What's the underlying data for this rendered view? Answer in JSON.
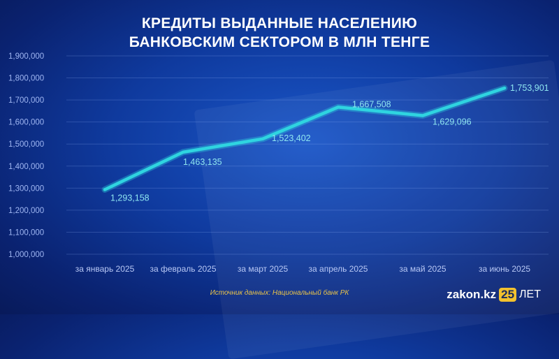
{
  "chart_data": {
    "type": "line",
    "title_line1": "КРЕДИТЫ ВЫДАННЫЕ НАСЕЛЕНИЮ",
    "title_line2": "БАНКОВСКИМ СЕКТОРОМ  В МЛН ТЕНГЕ",
    "categories": [
      "за январь 2025",
      "за февраль 2025",
      "за март 2025",
      "за апрель 2025",
      "за май 2025",
      "за июнь 2025"
    ],
    "values": [
      1293158,
      1463135,
      1523402,
      1667508,
      1629096,
      1753901
    ],
    "value_labels": [
      "1,293,158",
      "1,463,135",
      "1,523,402",
      "1,667,508",
      "1,629,096",
      "1,753,901"
    ],
    "ylim": [
      1000000,
      1900000
    ],
    "yticks": [
      "1,000,000",
      "1,100,000",
      "1,200,000",
      "1,300,000",
      "1,400,000",
      "1,500,000",
      "1,600,000",
      "1,700,000",
      "1,800,000",
      "1,900,000"
    ],
    "ytick_values": [
      1000000,
      1100000,
      1200000,
      1300000,
      1400000,
      1500000,
      1600000,
      1700000,
      1800000,
      1900000
    ],
    "grid": true,
    "line_color": "#2fd4e0"
  },
  "source": "Источник данных: Национальный банк РК",
  "logo": {
    "name": "zakon.kz",
    "number": "25",
    "suffix": "ЛЕТ"
  }
}
